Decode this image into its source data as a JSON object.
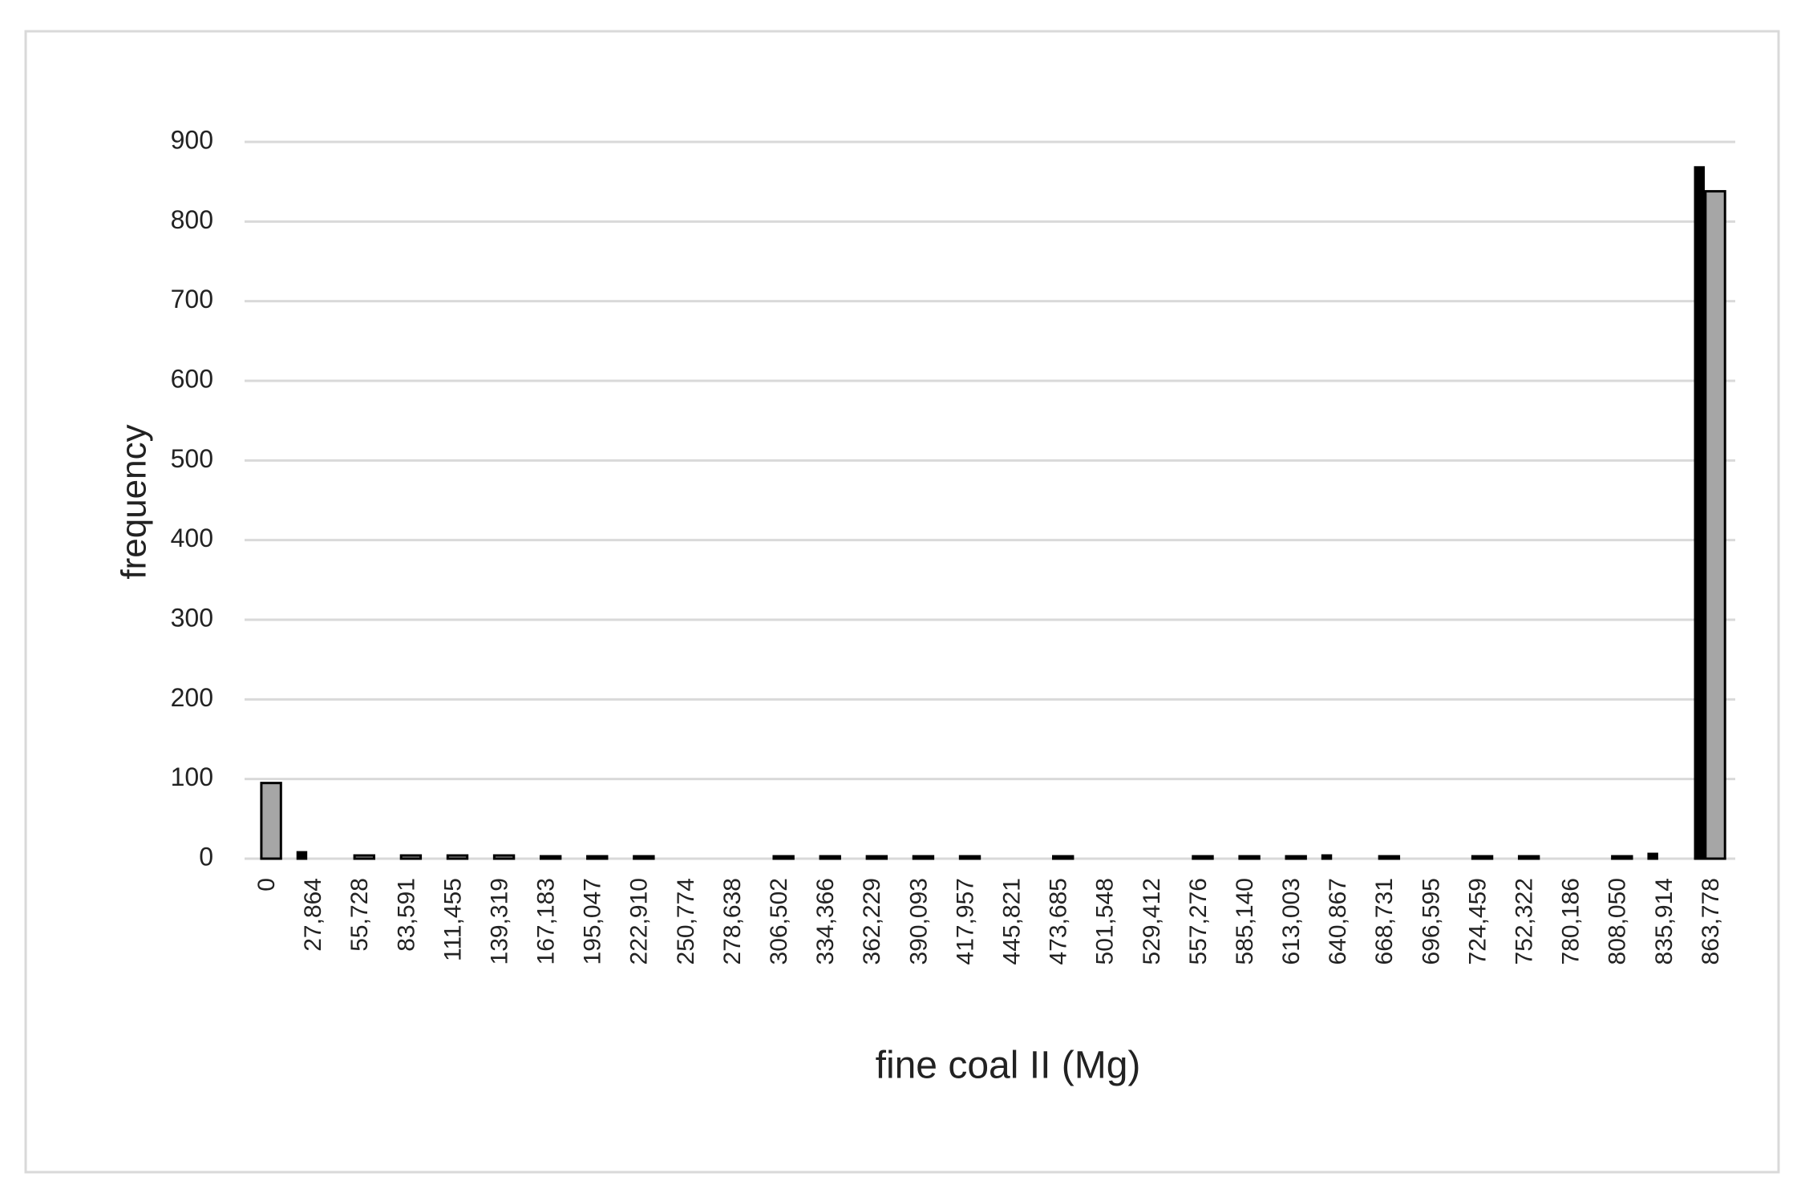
{
  "chart_data": {
    "type": "bar",
    "x_label": "fine coal II (Mg)",
    "y_label": "frequency",
    "categories": [
      "0",
      "27,864",
      "55,728",
      "83,591",
      "111,455",
      "139,319",
      "167,183",
      "195,047",
      "222,910",
      "250,774",
      "278,638",
      "306,502",
      "334,366",
      "362,229",
      "390,093",
      "417,957",
      "445,821",
      "473,685",
      "501,548",
      "529,412",
      "557,276",
      "585,140",
      "613,003",
      "640,867",
      "668,731",
      "696,595",
      "724,459",
      "752,322",
      "780,186",
      "808,050",
      "835,914",
      "863,778"
    ],
    "series": [
      {
        "color": "#000000",
        "values": [
          null,
          8,
          null,
          null,
          null,
          null,
          null,
          null,
          null,
          null,
          null,
          null,
          null,
          null,
          null,
          null,
          null,
          null,
          null,
          null,
          null,
          null,
          null,
          4,
          null,
          null,
          null,
          null,
          null,
          null,
          6,
          868
        ]
      },
      {
        "color": "#a6a6a6",
        "values": [
          95,
          null,
          4,
          4,
          4,
          4,
          3,
          3,
          3,
          0,
          0,
          3,
          3,
          3,
          3,
          3,
          0,
          3,
          0,
          0,
          3,
          3,
          3,
          null,
          3,
          0,
          3,
          3,
          0,
          3,
          null,
          838
        ]
      }
    ],
    "ylim": [
      0,
      900
    ],
    "yticks": [
      0,
      100,
      200,
      300,
      400,
      500,
      600,
      700,
      800,
      900
    ],
    "grid": true
  }
}
